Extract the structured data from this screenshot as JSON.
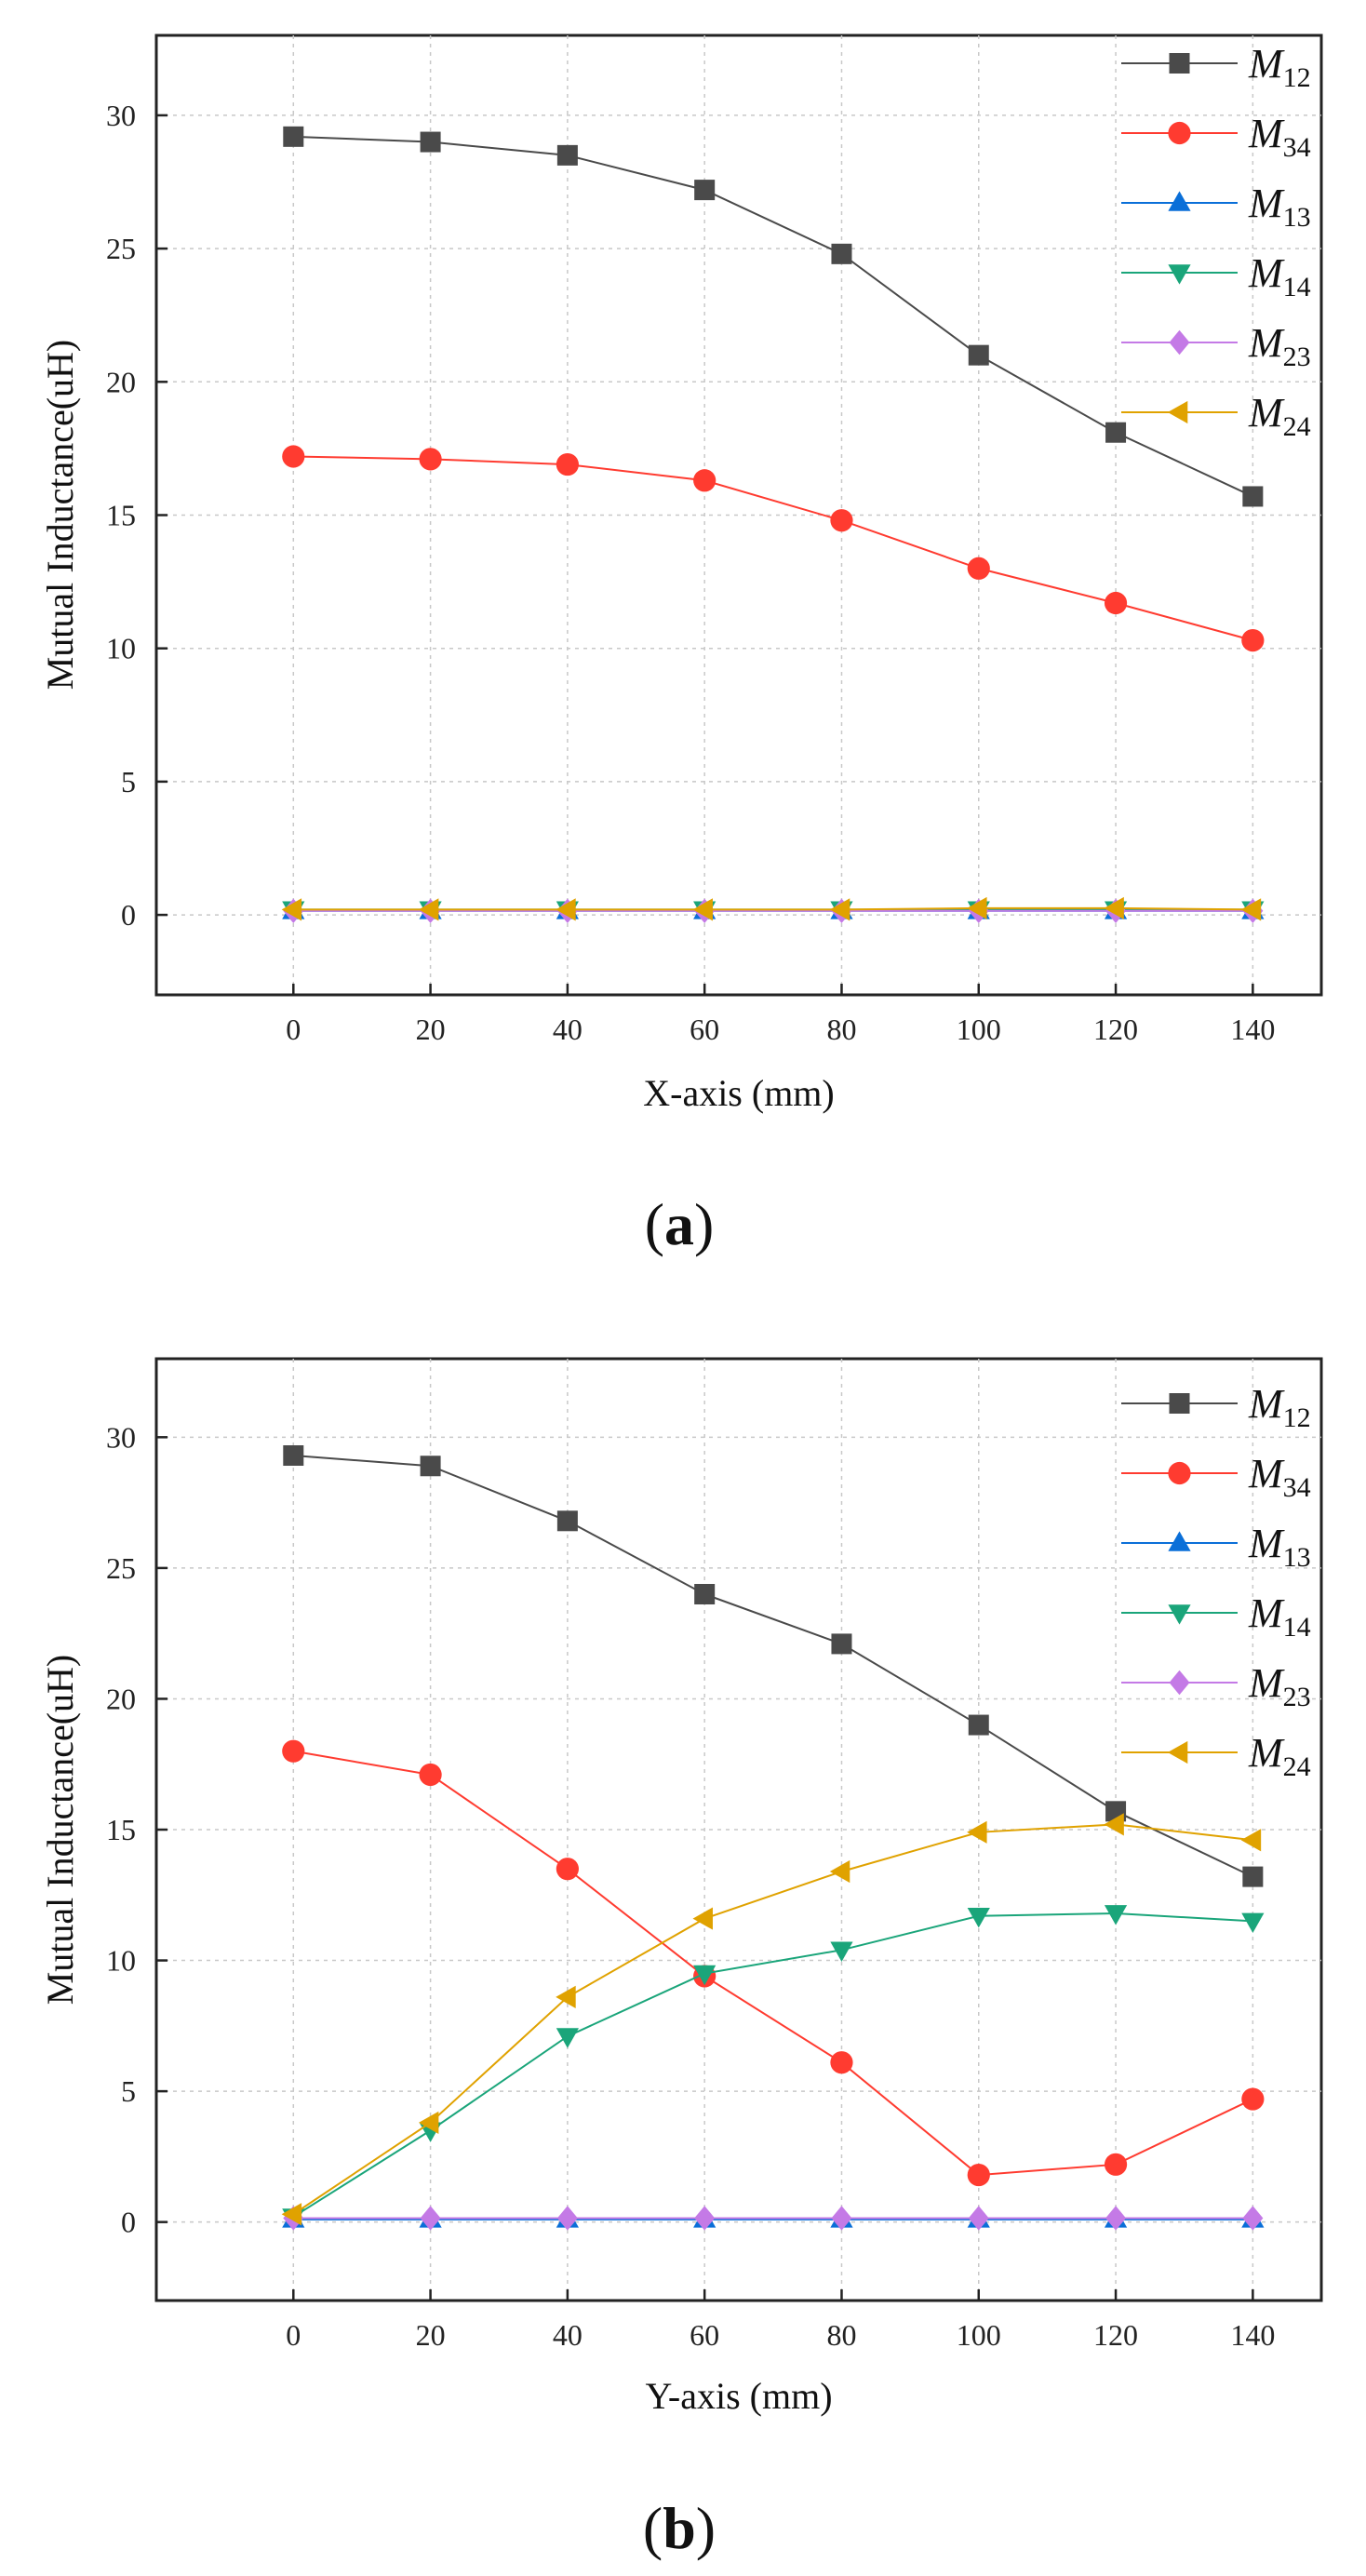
{
  "colors": {
    "M12": "#4a4a4a",
    "M34": "#ff3b30",
    "M13": "#0a6fd8",
    "M14": "#1aa57a",
    "M23": "#c47ae6",
    "M24": "#e0a200",
    "grid": "#c8c8c8",
    "axis": "#222222"
  },
  "chart_data": [
    {
      "type": "line",
      "panel_label": "a",
      "xlabel": "X-axis  (mm)",
      "ylabel": "Mutual Inductance(uH)",
      "xlim": [
        -20,
        150
      ],
      "ylim": [
        -3,
        33
      ],
      "x": [
        0,
        20,
        40,
        60,
        80,
        100,
        120,
        140
      ],
      "xticks": [
        0,
        20,
        40,
        60,
        80,
        100,
        120,
        140
      ],
      "yticks": [
        0,
        5,
        10,
        15,
        20,
        25,
        30
      ],
      "grid": true,
      "legend_position": "top-right",
      "series": [
        {
          "key": "M12",
          "name": "M",
          "sub": "12",
          "marker": "square",
          "values": [
            29.2,
            29.0,
            28.5,
            27.2,
            24.8,
            21.0,
            18.1,
            15.7
          ]
        },
        {
          "key": "M34",
          "name": "M",
          "sub": "34",
          "marker": "circle",
          "values": [
            17.2,
            17.1,
            16.9,
            16.3,
            14.8,
            13.0,
            11.7,
            10.3
          ]
        },
        {
          "key": "M13",
          "name": "M",
          "sub": "13",
          "marker": "triangle-up",
          "values": [
            0.15,
            0.15,
            0.15,
            0.15,
            0.15,
            0.15,
            0.15,
            0.15
          ]
        },
        {
          "key": "M14",
          "name": "M",
          "sub": "14",
          "marker": "triangle-down",
          "values": [
            0.2,
            0.2,
            0.2,
            0.2,
            0.2,
            0.2,
            0.2,
            0.2
          ]
        },
        {
          "key": "M23",
          "name": "M",
          "sub": "23",
          "marker": "diamond",
          "values": [
            0.15,
            0.15,
            0.15,
            0.15,
            0.15,
            0.15,
            0.15,
            0.15
          ]
        },
        {
          "key": "M24",
          "name": "M",
          "sub": "24",
          "marker": "triangle-left",
          "values": [
            0.2,
            0.2,
            0.2,
            0.2,
            0.2,
            0.25,
            0.25,
            0.2
          ]
        }
      ]
    },
    {
      "type": "line",
      "panel_label": "b",
      "xlabel": "Y-axis  (mm)",
      "ylabel": "Mutual Inductance(uH)",
      "xlim": [
        -20,
        150
      ],
      "ylim": [
        -3,
        33
      ],
      "x": [
        0,
        20,
        40,
        60,
        80,
        100,
        120,
        140
      ],
      "xticks": [
        0,
        20,
        40,
        60,
        80,
        100,
        120,
        140
      ],
      "yticks": [
        0,
        5,
        10,
        15,
        20,
        25,
        30
      ],
      "grid": true,
      "legend_position": "top-right",
      "series": [
        {
          "key": "M12",
          "name": "M",
          "sub": "12",
          "marker": "square",
          "values": [
            29.3,
            28.9,
            26.8,
            24.0,
            22.1,
            19.0,
            15.7,
            13.2
          ]
        },
        {
          "key": "M34",
          "name": "M",
          "sub": "34",
          "marker": "circle",
          "values": [
            18.0,
            17.1,
            13.5,
            9.4,
            6.1,
            1.8,
            2.2,
            4.7
          ]
        },
        {
          "key": "M13",
          "name": "M",
          "sub": "13",
          "marker": "triangle-up",
          "values": [
            0.1,
            0.1,
            0.1,
            0.1,
            0.1,
            0.1,
            0.1,
            0.1
          ]
        },
        {
          "key": "M14",
          "name": "M",
          "sub": "14",
          "marker": "triangle-down",
          "values": [
            0.2,
            3.5,
            7.1,
            9.5,
            10.4,
            11.7,
            11.8,
            11.5
          ]
        },
        {
          "key": "M23",
          "name": "M",
          "sub": "23",
          "marker": "diamond",
          "values": [
            0.15,
            0.15,
            0.15,
            0.15,
            0.15,
            0.15,
            0.15,
            0.15
          ]
        },
        {
          "key": "M24",
          "name": "M",
          "sub": "24",
          "marker": "triangle-left",
          "values": [
            0.3,
            3.8,
            8.6,
            11.6,
            13.4,
            14.9,
            15.2,
            14.6
          ]
        }
      ]
    }
  ]
}
